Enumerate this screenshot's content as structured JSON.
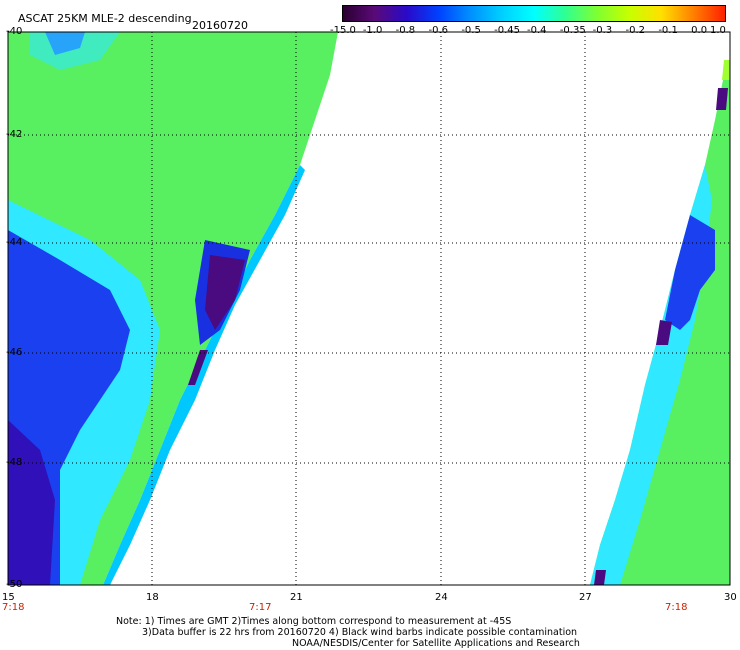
{
  "header": {
    "title": "ASCAT 25KM MLE-2 descending",
    "date": "20160720"
  },
  "colorbar": {
    "labels": [
      "-15.0",
      "-1.0",
      "-0.8",
      "-0.6",
      "-0.5",
      "-0.45",
      "-0.4",
      "-0.35",
      "-0.3",
      "-0.2",
      "-0.1",
      "0.0",
      "1.0"
    ],
    "colors": [
      "#2a0030",
      "#5a0a78",
      "#2a0ac8",
      "#0040ff",
      "#0090ff",
      "#00d0ff",
      "#00ffff",
      "#30ff90",
      "#80ff30",
      "#c8ff00",
      "#ffe000",
      "#ff8000",
      "#ff2000"
    ]
  },
  "map": {
    "lat_labels": [
      "-40",
      "-42",
      "-44",
      "-46",
      "-48",
      "-50"
    ],
    "lon_labels": [
      "15",
      "18",
      "21",
      "24",
      "27",
      "30"
    ],
    "time_labels": [
      "7:18",
      "7:17",
      "7:18"
    ]
  },
  "footer": {
    "line1": "Note: 1) Times are GMT 2)Times along bottom correspond to measurement at -45S",
    "line2": "3)Data buffer is 22 hrs from 20160720 4) Black wind barbs indicate possible contamination",
    "line3": "NOAA/NESDIS/Center for Satellite Applications and Research"
  }
}
